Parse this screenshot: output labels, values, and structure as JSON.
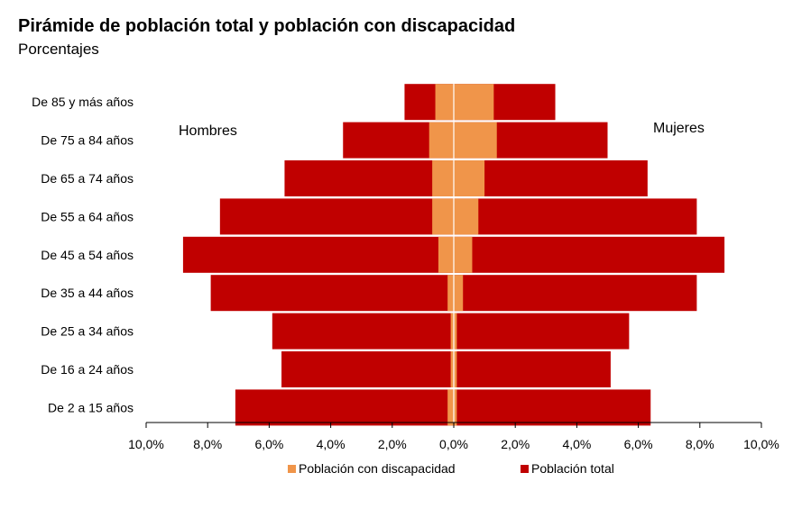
{
  "title": "Pirámide de población total y población con discapacidad",
  "subtitle": "Porcentajes",
  "colors": {
    "total": "#C00000",
    "discapacidad": "#F0954A",
    "axis": "#000000"
  },
  "legend": {
    "discapacidad": "Población con discapacidad",
    "total": "Población total"
  },
  "chart_data": {
    "type": "bar",
    "orientation": "horizontal-pyramid",
    "categories": [
      "De 85 y más años",
      "De 75 a 84 años",
      "De 65 a 74 años",
      "De 55 a 64 años",
      "De 45 a 54 años",
      "De 35 a 44 años",
      "De 25 a 34 años",
      "De 16 a 24 años",
      "De 2 a 15 años"
    ],
    "side_labels": {
      "left": "Hombres",
      "right": "Mujeres"
    },
    "series": [
      {
        "name": "Población total",
        "side": "Hombres",
        "values": [
          1.6,
          3.6,
          5.5,
          7.6,
          8.8,
          7.9,
          5.9,
          5.6,
          7.1
        ]
      },
      {
        "name": "Población total",
        "side": "Mujeres",
        "values": [
          3.3,
          5.0,
          6.3,
          7.9,
          8.8,
          7.9,
          5.7,
          5.1,
          6.4
        ]
      },
      {
        "name": "Población con discapacidad",
        "side": "Hombres",
        "values": [
          0.6,
          0.8,
          0.7,
          0.7,
          0.5,
          0.2,
          0.1,
          0.1,
          0.2
        ]
      },
      {
        "name": "Población con discapacidad",
        "side": "Mujeres",
        "values": [
          1.3,
          1.4,
          1.0,
          0.8,
          0.6,
          0.3,
          0.1,
          0.1,
          0.1
        ]
      }
    ],
    "xlim": [
      -10,
      10
    ],
    "xticks": [
      "10,0%",
      "8,0%",
      "6,0%",
      "4,0%",
      "2,0%",
      "0,0%",
      "2,0%",
      "4,0%",
      "6,0%",
      "8,0%",
      "10,0%"
    ],
    "grid": false,
    "legend_position": "bottom"
  }
}
